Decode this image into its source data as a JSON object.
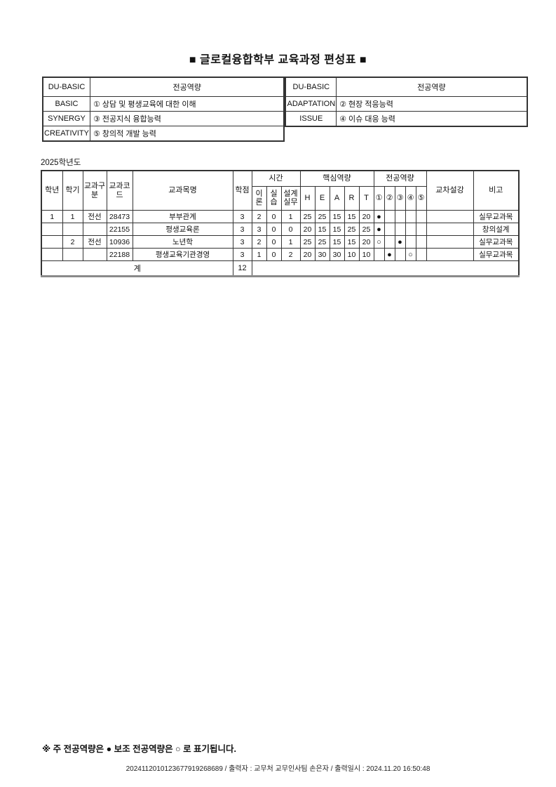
{
  "title": "■ 글로컬융합학부 교육과정 편성표 ■",
  "competency_tables": [
    {
      "header": [
        "DU-BASIC",
        "전공역량"
      ],
      "rows": [
        [
          "BASIC",
          "① 상담 및 평생교육에 대한 이해"
        ],
        [
          "SYNERGY",
          "③ 전공지식 융합능력"
        ],
        [
          "CREATIVITY",
          "⑤ 창의적 개발 능력"
        ]
      ]
    },
    {
      "header": [
        "DU-BASIC",
        "전공역량"
      ],
      "rows": [
        [
          "ADAPTATION",
          "② 현장 적응능력"
        ],
        [
          "ISSUE",
          "④ 이슈 대응 능력"
        ]
      ]
    }
  ],
  "year_label": "2025학년도",
  "curriculum_table": {
    "columns": {
      "year": "학년",
      "semester": "학기",
      "category": "교과구분",
      "code": "교과코드",
      "name": "교과목명",
      "credits": "학점",
      "time_group": "시간",
      "theory": "이론",
      "practice": "실습",
      "design": "설계실무",
      "core_group": "핵심역량",
      "core": [
        "H",
        "E",
        "A",
        "R",
        "T"
      ],
      "major_group": "전공역량",
      "major": [
        "①",
        "②",
        "③",
        "④",
        "⑤"
      ],
      "cross": "교차설강",
      "note": "비고"
    },
    "rows": [
      {
        "year": "1",
        "semester": "1",
        "category": "전선",
        "code": "28473",
        "name": "부부관계",
        "credits": "3",
        "theory": "2",
        "practice": "0",
        "design": "1",
        "H": "25",
        "E": "25",
        "A": "15",
        "R": "15",
        "T": "20",
        "major": [
          "●",
          "",
          "",
          "",
          ""
        ],
        "cross": "",
        "note": "실무교과목"
      },
      {
        "year": "",
        "semester": "",
        "category": "",
        "code": "22155",
        "name": "평생교육론",
        "credits": "3",
        "theory": "3",
        "practice": "0",
        "design": "0",
        "H": "20",
        "E": "15",
        "A": "15",
        "R": "25",
        "T": "25",
        "major": [
          "●",
          "",
          "",
          "",
          ""
        ],
        "cross": "",
        "note": "창의설계"
      },
      {
        "year": "",
        "semester": "2",
        "category": "전선",
        "code": "10936",
        "name": "노년학",
        "credits": "3",
        "theory": "2",
        "practice": "0",
        "design": "1",
        "H": "25",
        "E": "25",
        "A": "15",
        "R": "15",
        "T": "20",
        "major": [
          "○",
          "",
          "●",
          "",
          ""
        ],
        "cross": "",
        "note": "실무교과목"
      },
      {
        "year": "",
        "semester": "",
        "category": "",
        "code": "22188",
        "name": "평생교육기관경영",
        "credits": "3",
        "theory": "1",
        "practice": "0",
        "design": "2",
        "H": "20",
        "E": "30",
        "A": "30",
        "R": "10",
        "T": "10",
        "major": [
          "",
          "●",
          "",
          "○",
          ""
        ],
        "cross": "",
        "note": "실무교과목"
      }
    ],
    "total_label": "계",
    "total_credits": "12"
  },
  "footnote": "※ 주 전공역량은 ● 보조 전공역량은 ○ 로 표기됩니다.",
  "print_info": "2024112010123677919268689 / 출력자 : 교무처 교무인사팀 손은자 / 출력일시 : 2024.11.20 16:50:48"
}
